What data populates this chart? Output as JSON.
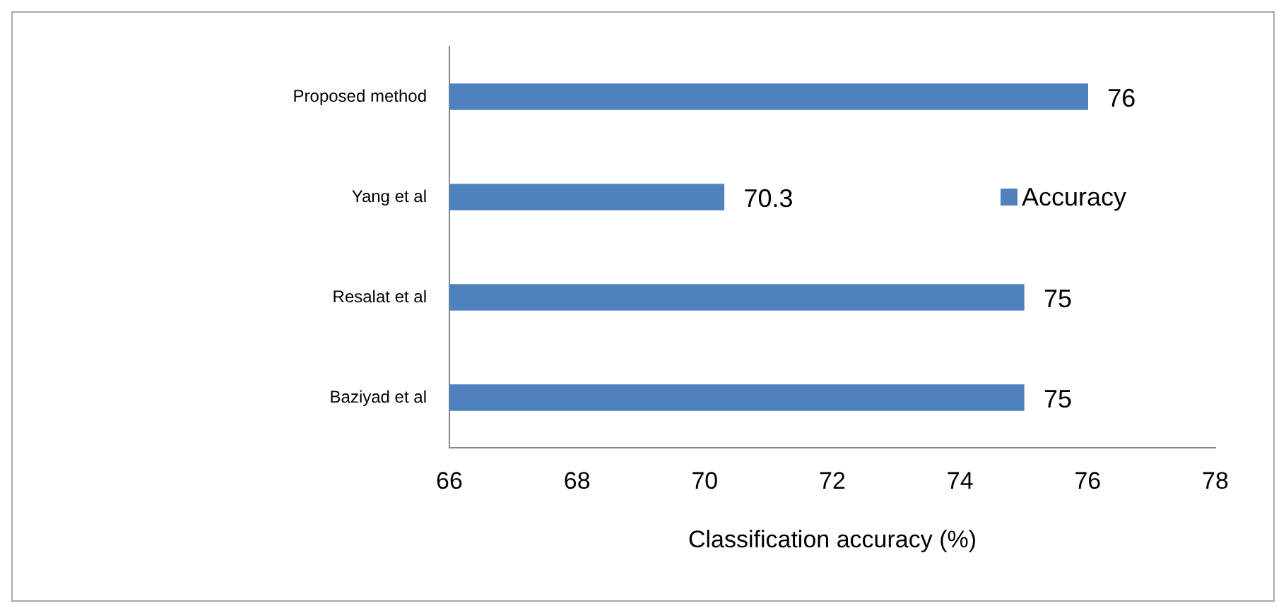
{
  "chart_data": {
    "type": "bar",
    "orientation": "horizontal",
    "xlabel": "Classification accuracy (%)",
    "categories": [
      "Proposed method",
      "Yang et al",
      "Resalat et al",
      "Baziyad et al"
    ],
    "series": [
      {
        "name": "Accuracy",
        "color": "#4f81bd",
        "values": [
          76,
          70.3,
          75,
          75
        ]
      }
    ],
    "xlim": [
      66,
      78
    ],
    "xticks": [
      66,
      68,
      70,
      72,
      74,
      76,
      78
    ],
    "data_labels": true,
    "legend": "right"
  }
}
